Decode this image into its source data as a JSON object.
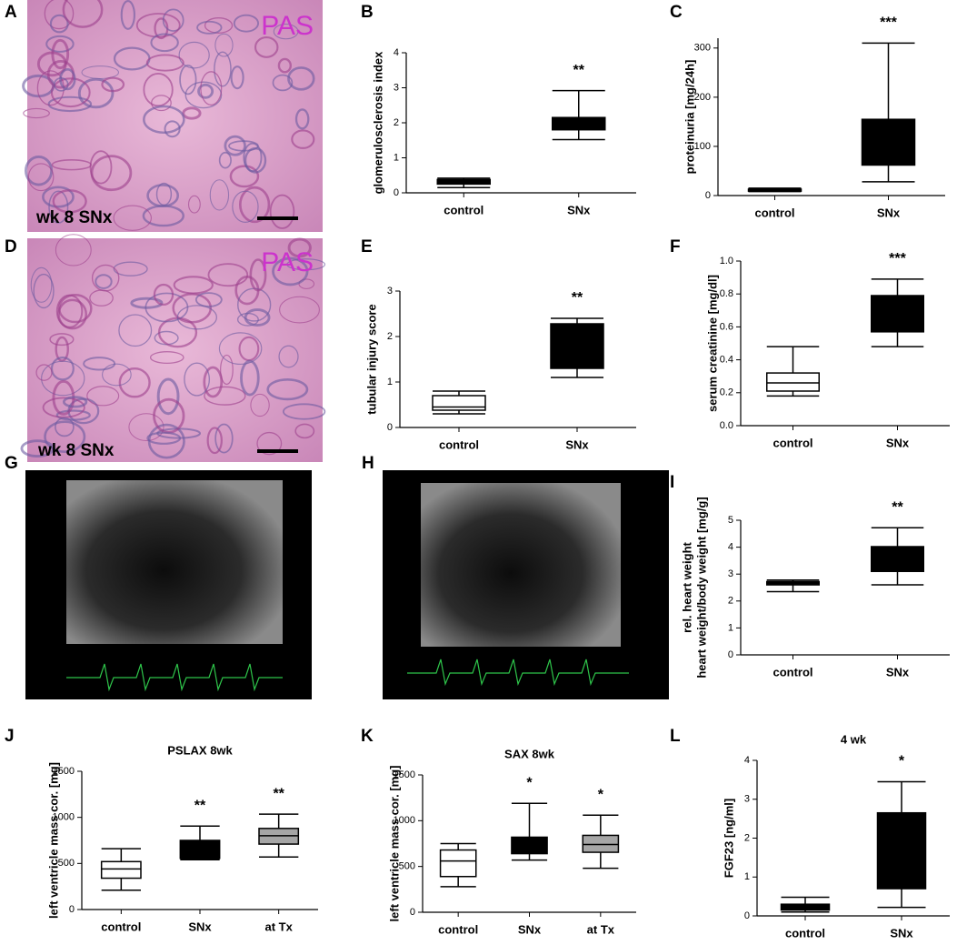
{
  "image_panels": [
    {
      "letter": "A",
      "stain": "PAS",
      "caption": "wk 8 SNx"
    },
    {
      "letter": "D",
      "stain": "PAS",
      "caption": "wk 8 SNx"
    },
    {
      "letter": "G"
    },
    {
      "letter": "H"
    }
  ],
  "chart_data": [
    {
      "type": "box",
      "letter": "B",
      "ylabel": "glomerulosclerosis index",
      "categories": [
        "control",
        "SNx"
      ],
      "boxes": [
        {
          "min": 0.15,
          "q1": 0.25,
          "median": 0.3,
          "q3": 0.38,
          "max": 0.42,
          "color": "#000000"
        },
        {
          "min": 1.52,
          "q1": 1.8,
          "median": 2.0,
          "q3": 2.15,
          "max": 2.92,
          "color": "#000000"
        }
      ],
      "annotations": [
        null,
        "**"
      ],
      "ylim": [
        0,
        4
      ],
      "yticks": [
        0,
        1,
        2,
        3,
        4
      ]
    },
    {
      "type": "box",
      "letter": "C",
      "ylabel": "proteinuria [mg/24h]",
      "categories": [
        "control",
        "SNx"
      ],
      "boxes": [
        {
          "min": 8,
          "q1": 9,
          "median": 11,
          "q3": 13,
          "max": 15,
          "color": "#000000"
        },
        {
          "min": 28,
          "q1": 62,
          "median": 100,
          "q3": 155,
          "max": 310,
          "color": "#000000"
        }
      ],
      "annotations": [
        null,
        "***"
      ],
      "ylim": [
        0,
        320
      ],
      "yticks": [
        0,
        100,
        200,
        300
      ]
    },
    {
      "type": "box",
      "letter": "E",
      "ylabel": "tubular injury score",
      "categories": [
        "control",
        "SNx"
      ],
      "boxes": [
        {
          "min": 0.3,
          "q1": 0.38,
          "median": 0.45,
          "q3": 0.7,
          "max": 0.8,
          "color": "#ffffff"
        },
        {
          "min": 1.1,
          "q1": 1.3,
          "median": 1.8,
          "q3": 2.28,
          "max": 2.4,
          "color": "#000000"
        }
      ],
      "annotations": [
        null,
        "**"
      ],
      "ylim": [
        0,
        3
      ],
      "yticks": [
        0,
        1,
        2,
        3
      ]
    },
    {
      "type": "box",
      "letter": "F",
      "ylabel": "serum creatinine [mg/dl]",
      "categories": [
        "control",
        "SNx"
      ],
      "boxes": [
        {
          "min": 0.18,
          "q1": 0.21,
          "median": 0.26,
          "q3": 0.32,
          "max": 0.48,
          "color": "#ffffff"
        },
        {
          "min": 0.48,
          "q1": 0.57,
          "median": 0.7,
          "q3": 0.79,
          "max": 0.89,
          "color": "#000000"
        }
      ],
      "annotations": [
        null,
        "***"
      ],
      "ylim": [
        0,
        1
      ],
      "yticks": [
        {
          "value": 0,
          "label": "0.0"
        },
        0.2,
        0.4,
        0.6,
        0.8,
        {
          "value": 1,
          "label": "1.0"
        }
      ]
    },
    {
      "type": "box",
      "letter": "I",
      "ylabel": [
        "rel. heart weight",
        "heart weight/body weight [mg/g]"
      ],
      "categories": [
        "control",
        "SNx"
      ],
      "boxes": [
        {
          "min": 2.35,
          "q1": 2.6,
          "median": 2.65,
          "q3": 2.72,
          "max": 2.78,
          "color": "#000000"
        },
        {
          "min": 2.6,
          "q1": 3.1,
          "median": 3.5,
          "q3": 4.02,
          "max": 4.72,
          "color": "#000000"
        }
      ],
      "annotations": [
        null,
        "**"
      ],
      "ylim": [
        0,
        5
      ],
      "yticks": [
        0,
        1,
        2,
        3,
        4,
        5
      ]
    },
    {
      "type": "box",
      "letter": "J",
      "title": "PSLAX 8wk",
      "ylabel": "left ventricle mass cor. [mg]",
      "categories": [
        "control",
        "SNx",
        "at Tx"
      ],
      "boxes": [
        {
          "min": 210,
          "q1": 340,
          "median": 440,
          "q3": 520,
          "max": 660,
          "color": "#ffffff"
        },
        {
          "min": 540,
          "q1": 555,
          "median": 650,
          "q3": 750,
          "max": 905,
          "color": "#000000"
        },
        {
          "min": 570,
          "q1": 710,
          "median": 800,
          "q3": 880,
          "max": 1035,
          "color": "#a6a6a6"
        }
      ],
      "annotations": [
        null,
        "**",
        "**"
      ],
      "ylim": [
        0,
        1500
      ],
      "yticks": [
        0,
        500,
        1000,
        1500
      ]
    },
    {
      "type": "box",
      "letter": "K",
      "title": "SAX 8wk",
      "ylabel": "left ventricle mass cor. [mg]",
      "categories": [
        "control",
        "SNx",
        "at Tx"
      ],
      "boxes": [
        {
          "min": 280,
          "q1": 390,
          "median": 560,
          "q3": 680,
          "max": 750,
          "color": "#ffffff"
        },
        {
          "min": 570,
          "q1": 640,
          "median": 700,
          "q3": 820,
          "max": 1190,
          "color": "#000000"
        },
        {
          "min": 480,
          "q1": 655,
          "median": 740,
          "q3": 840,
          "max": 1060,
          "color": "#a6a6a6"
        }
      ],
      "annotations": [
        null,
        "*",
        "*"
      ],
      "ylim": [
        0,
        1500
      ],
      "yticks": [
        0,
        500,
        1000,
        1500
      ]
    },
    {
      "type": "box",
      "letter": "L",
      "title": "4 wk",
      "ylabel": "FGF23 [ng/ml]",
      "categories": [
        "control",
        "SNx"
      ],
      "boxes": [
        {
          "min": 0.1,
          "q1": 0.15,
          "median": 0.22,
          "q3": 0.3,
          "max": 0.48,
          "color": "#000000"
        },
        {
          "min": 0.22,
          "q1": 0.7,
          "median": 1.5,
          "q3": 2.65,
          "max": 3.45,
          "color": "#000000"
        }
      ],
      "annotations": [
        null,
        "*"
      ],
      "ylim": [
        0,
        4
      ],
      "yticks": [
        0,
        1,
        2,
        3,
        4
      ]
    }
  ]
}
